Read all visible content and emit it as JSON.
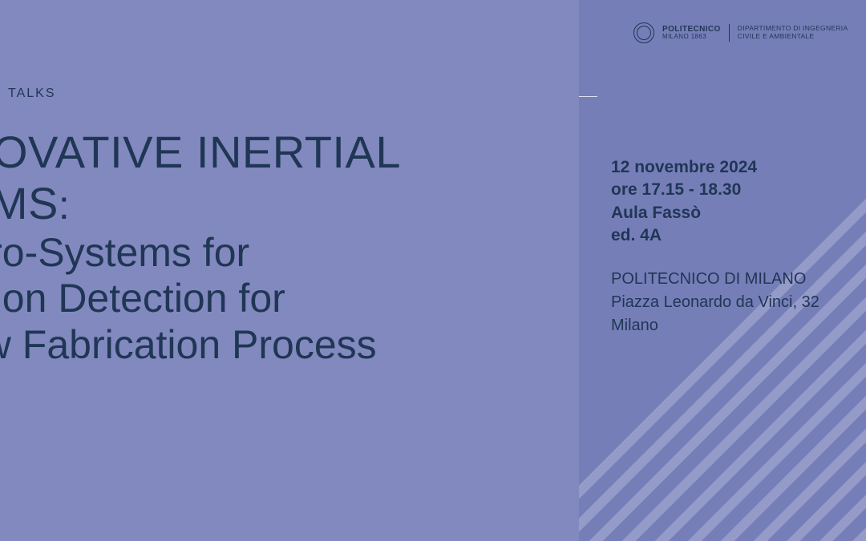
{
  "colors": {
    "bg_left": "#8289bf",
    "bg_right": "#767eb8",
    "text_dark": "#1f3654",
    "stripe": "#959bc9",
    "divider": "#dfe1ef",
    "logo": "#1f3654"
  },
  "category": "TALKS",
  "headline": {
    "line1": "NOVATIVE INERTIAL",
    "line2": "EMS",
    "separator": ":",
    "line3": "icro-Systems for",
    "line4": "otion Detection for",
    "line5": "ew Fabrication Process"
  },
  "logo": {
    "name_line1": "POLITECNICO",
    "name_line2": "MILANO 1863",
    "dept_line1": "DIPARTIMENTO DI INGEGNERIA",
    "dept_line2": "CIVILE E AMBIENTALE"
  },
  "event": {
    "date": "12 novembre 2024",
    "time": "ore 17.15 - 18.30",
    "room": "Aula Fassò",
    "building": "ed. 4A",
    "institution": "POLITECNICO DI MILANO",
    "address": "Piazza Leonardo da Vinci, 32",
    "city": "Milano"
  }
}
